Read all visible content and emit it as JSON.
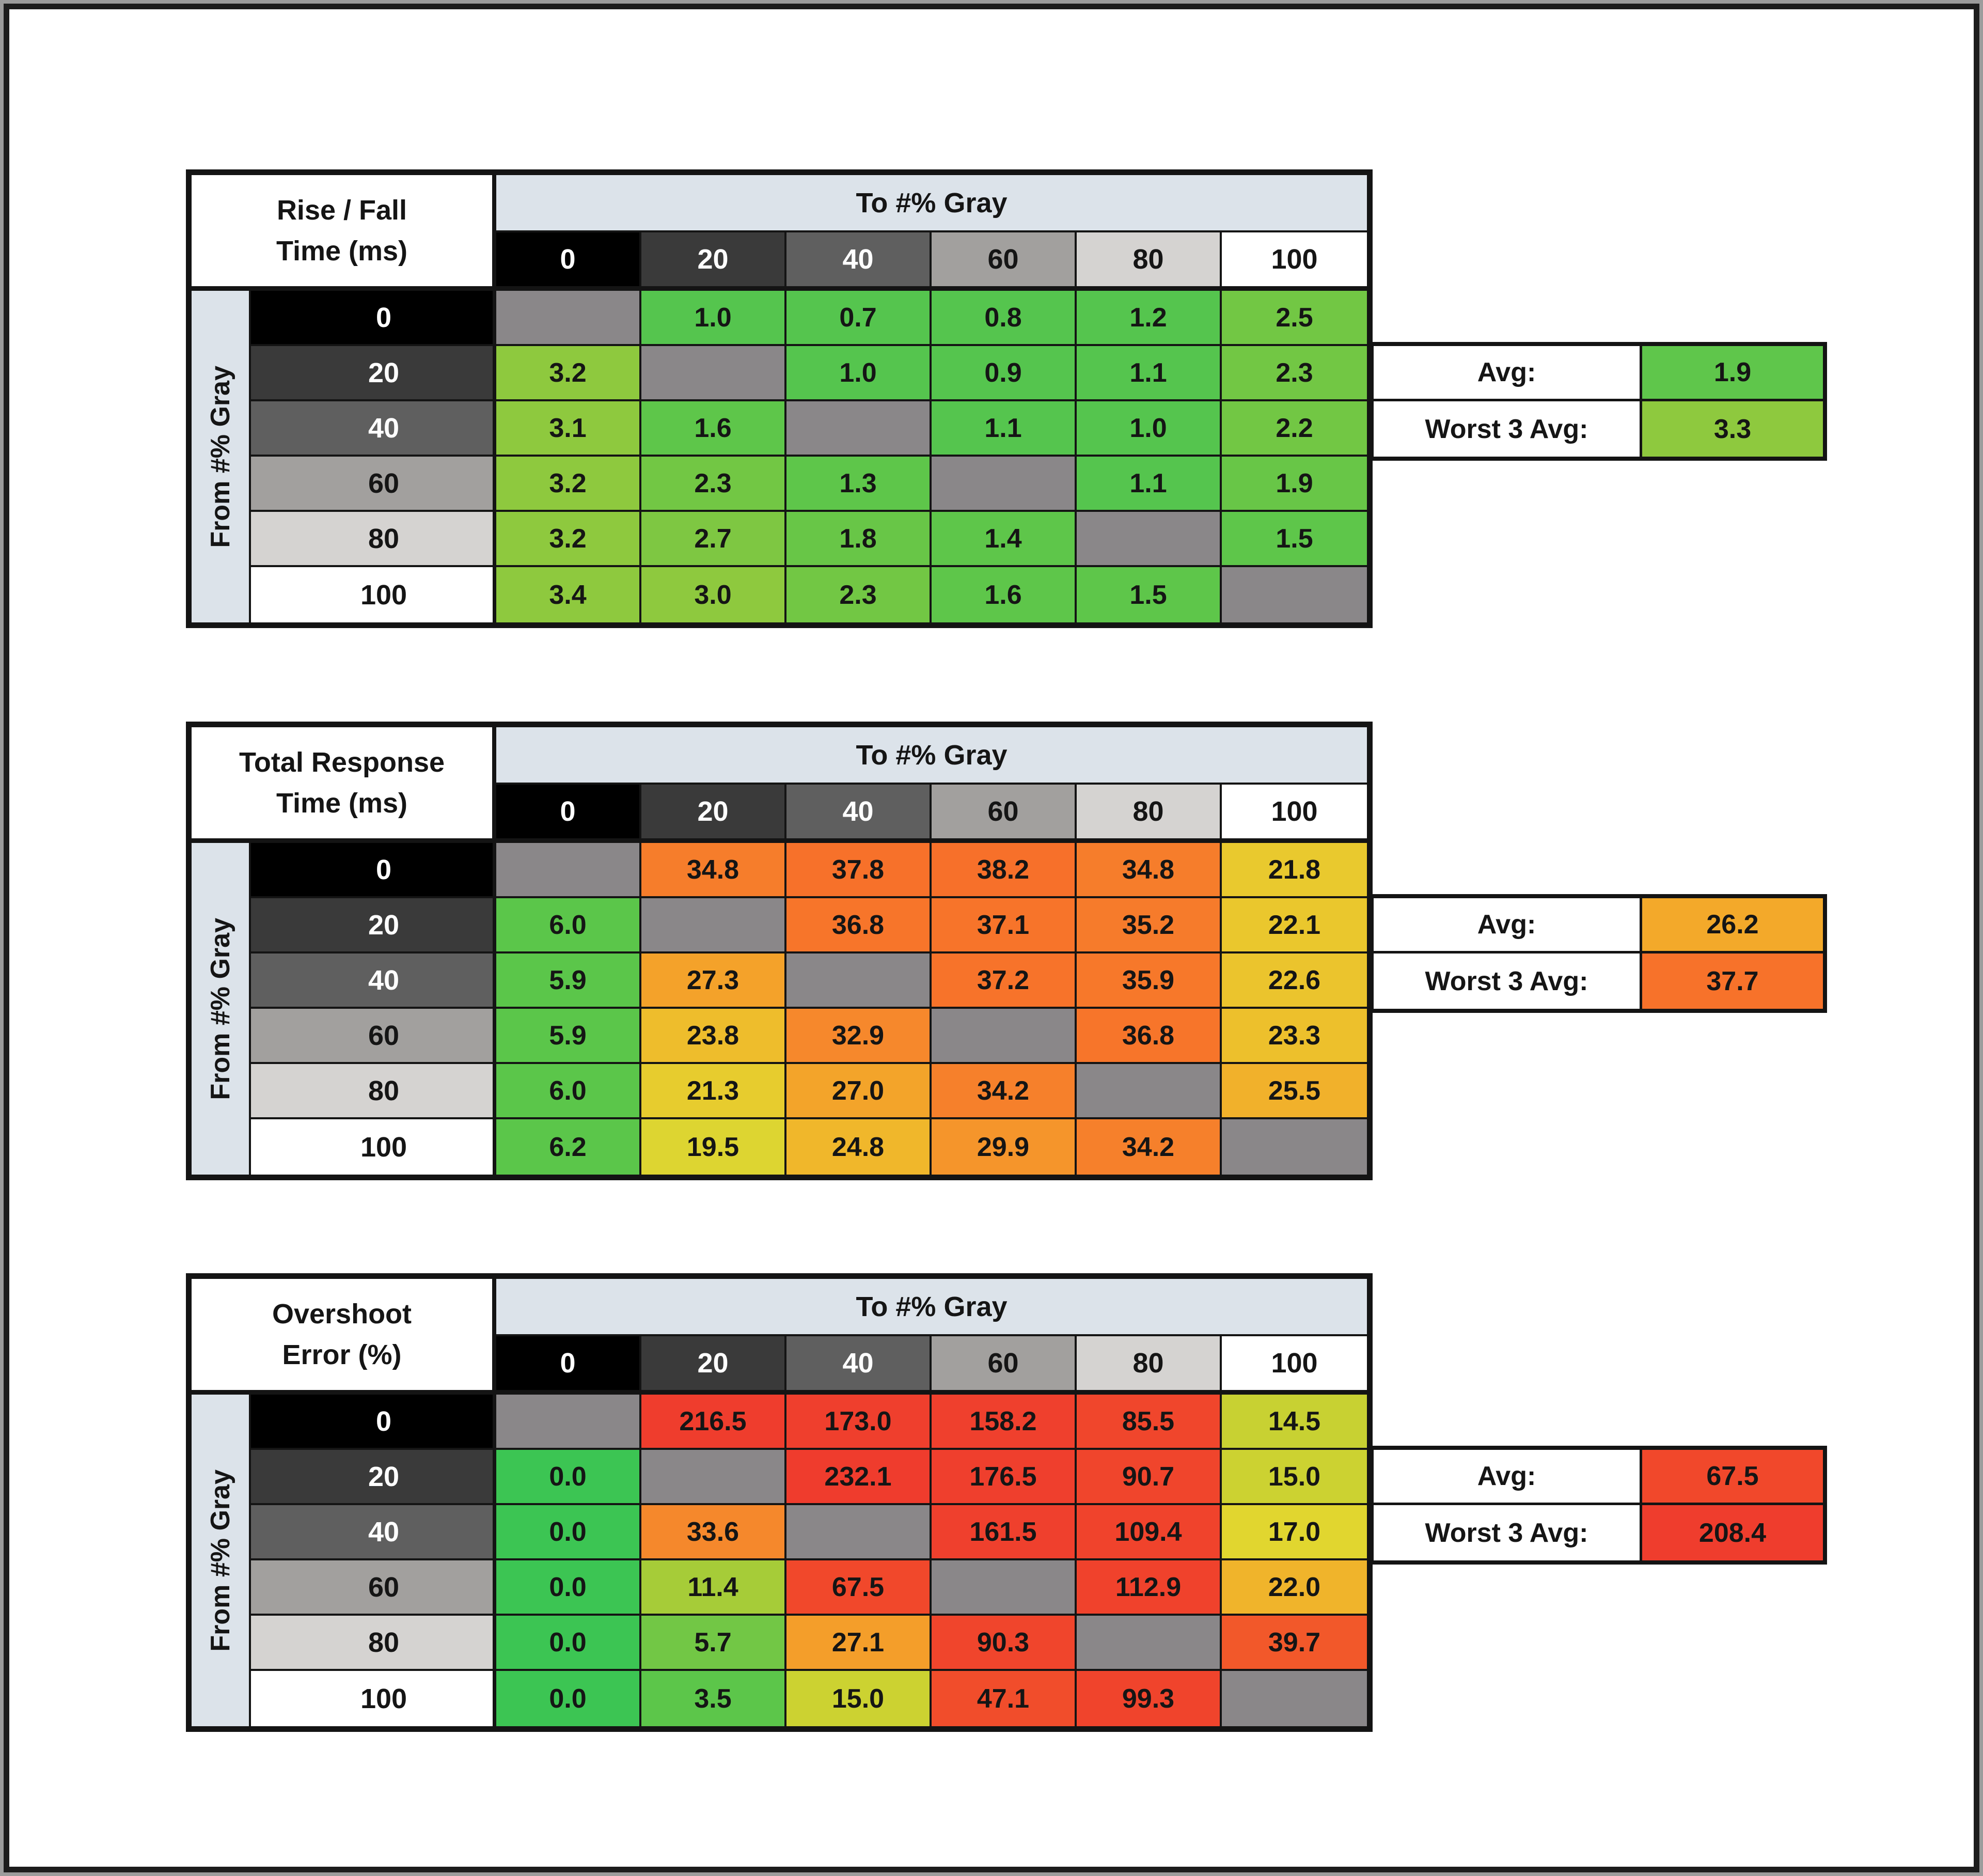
{
  "page": {
    "background": "#ffffff",
    "frame_border_color": "#1d1d1d",
    "outer_edge_color": "#9c9c9c"
  },
  "shared": {
    "to_label": "To #% Gray",
    "from_label": "From #% Gray",
    "col_headers": [
      "0",
      "20",
      "40",
      "60",
      "80",
      "100"
    ],
    "row_headers": [
      "0",
      "20",
      "40",
      "60",
      "80",
      "100"
    ],
    "avg_label": "Avg:",
    "worst_label": "Worst 3 Avg:",
    "header_band_color": "#dce3ea",
    "gray_scale_colors": [
      "#000000",
      "#3a3a3a",
      "#5f5f5f",
      "#a2a09e",
      "#d5d3d1",
      "#ffffff"
    ],
    "gray_text_colors": [
      "#ffffff",
      "#ffffff",
      "#ffffff",
      "#151515",
      "#151515",
      "#151515"
    ],
    "diagonal_color": "#8a8789",
    "grid_line_color": "#141414"
  },
  "chart_data": [
    {
      "type": "heatmap",
      "id": "rise-fall-time",
      "title": "Rise / Fall Time (ms)",
      "title_lines": [
        "Rise / Fall",
        "Time (ms)"
      ],
      "x_label": "To #% Gray",
      "y_label": "From #% Gray",
      "categories": [
        0,
        20,
        40,
        60,
        80,
        100
      ],
      "rows": [
        {
          "from": 0,
          "values": [
            null,
            "1.0",
            "0.7",
            "0.8",
            "1.2",
            "2.5"
          ]
        },
        {
          "from": 20,
          "values": [
            "3.2",
            null,
            "1.0",
            "0.9",
            "1.1",
            "2.3"
          ]
        },
        {
          "from": 40,
          "values": [
            "3.1",
            "1.6",
            null,
            "1.1",
            "1.0",
            "2.2"
          ]
        },
        {
          "from": 60,
          "values": [
            "3.2",
            "2.3",
            "1.3",
            null,
            "1.1",
            "1.9"
          ]
        },
        {
          "from": 80,
          "values": [
            "3.2",
            "2.7",
            "1.8",
            "1.4",
            null,
            "1.5"
          ]
        },
        {
          "from": 100,
          "values": [
            "3.4",
            "3.0",
            "2.3",
            "1.6",
            "1.5",
            null
          ]
        }
      ],
      "cell_colors": [
        [
          null,
          "#55c54e",
          "#55c54e",
          "#55c54e",
          "#55c54e",
          "#72c744"
        ],
        [
          "#8ec93e",
          null,
          "#55c54e",
          "#55c54e",
          "#55c54e",
          "#72c744"
        ],
        [
          "#8ec93e",
          "#5ec64a",
          null,
          "#55c54e",
          "#55c54e",
          "#72c744"
        ],
        [
          "#8ec93e",
          "#72c744",
          "#5ec64a",
          null,
          "#55c54e",
          "#68c647"
        ],
        [
          "#8ec93e",
          "#7ec742",
          "#68c647",
          "#5ec64a",
          null,
          "#5ec64a"
        ],
        [
          "#8ec93e",
          "#8ec93e",
          "#72c744",
          "#5ec64a",
          "#5ec64a",
          null
        ]
      ],
      "avg": {
        "value": "1.9",
        "color": "#5fc64b"
      },
      "worst3": {
        "value": "3.3",
        "color": "#8ec93e"
      }
    },
    {
      "type": "heatmap",
      "id": "total-response-time",
      "title": "Total Response Time (ms)",
      "title_lines": [
        "Total Response",
        "Time (ms)"
      ],
      "x_label": "To #% Gray",
      "y_label": "From #% Gray",
      "categories": [
        0,
        20,
        40,
        60,
        80,
        100
      ],
      "rows": [
        {
          "from": 0,
          "values": [
            null,
            "34.8",
            "37.8",
            "38.2",
            "34.8",
            "21.8"
          ]
        },
        {
          "from": 20,
          "values": [
            "6.0",
            null,
            "36.8",
            "37.1",
            "35.2",
            "22.1"
          ]
        },
        {
          "from": 40,
          "values": [
            "5.9",
            "27.3",
            null,
            "37.2",
            "35.9",
            "22.6"
          ]
        },
        {
          "from": 60,
          "values": [
            "5.9",
            "23.8",
            "32.9",
            null,
            "36.8",
            "23.3"
          ]
        },
        {
          "from": 80,
          "values": [
            "6.0",
            "21.3",
            "27.0",
            "34.2",
            null,
            "25.5"
          ]
        },
        {
          "from": 100,
          "values": [
            "6.2",
            "19.5",
            "24.8",
            "29.9",
            "34.2",
            null
          ]
        }
      ],
      "cell_colors": [
        [
          null,
          "#f67d2b",
          "#f7712a",
          "#f7702a",
          "#f67d2b",
          "#e9c92e"
        ],
        [
          "#5bc64a",
          null,
          "#f7752a",
          "#f7742a",
          "#f67b2b",
          "#eac72d"
        ],
        [
          "#5bc64a",
          "#f4a22a",
          null,
          "#f7732a",
          "#f7782a",
          "#ebc42d"
        ],
        [
          "#5bc64a",
          "#eebd2c",
          "#f6882c",
          null,
          "#f7752a",
          "#edc02c"
        ],
        [
          "#5bc64a",
          "#e7cc2e",
          "#f3a42a",
          "#f6802b",
          null,
          "#f1b12b"
        ],
        [
          "#5bc64a",
          "#ddd531",
          "#f0b72b",
          "#f5952b",
          "#f6802b",
          null
        ]
      ],
      "avg": {
        "value": "26.2",
        "color": "#f3a92a"
      },
      "worst3": {
        "value": "37.7",
        "color": "#f7722a"
      }
    },
    {
      "type": "heatmap",
      "id": "overshoot-error",
      "title": "Overshoot Error (%)",
      "title_lines": [
        "Overshoot",
        "Error (%)"
      ],
      "x_label": "To #% Gray",
      "y_label": "From #% Gray",
      "categories": [
        0,
        20,
        40,
        60,
        80,
        100
      ],
      "rows": [
        {
          "from": 0,
          "values": [
            null,
            "216.5",
            "173.0",
            "158.2",
            "85.5",
            "14.5"
          ]
        },
        {
          "from": 20,
          "values": [
            "0.0",
            null,
            "232.1",
            "176.5",
            "90.7",
            "15.0"
          ]
        },
        {
          "from": 40,
          "values": [
            "0.0",
            "33.6",
            null,
            "161.5",
            "109.4",
            "17.0"
          ]
        },
        {
          "from": 60,
          "values": [
            "0.0",
            "11.4",
            "67.5",
            null,
            "112.9",
            "22.0"
          ]
        },
        {
          "from": 80,
          "values": [
            "0.0",
            "5.7",
            "27.1",
            "90.3",
            null,
            "39.7"
          ]
        },
        {
          "from": 100,
          "values": [
            "0.0",
            "3.5",
            "15.0",
            "47.1",
            "99.3",
            null
          ]
        }
      ],
      "cell_colors": [
        [
          null,
          "#ef3d2d",
          "#ef3f2d",
          "#ef402d",
          "#f0462c",
          "#c8d132"
        ],
        [
          "#3cc553",
          null,
          "#ef3c2d",
          "#ef3f2d",
          "#f0452c",
          "#ccd231"
        ],
        [
          "#3cc553",
          "#f5882c",
          null,
          "#ef402d",
          "#f0432c",
          "#e1d62f"
        ],
        [
          "#3cc553",
          "#a6cc38",
          "#f1482b",
          null,
          "#f0422c",
          "#f0b42b"
        ],
        [
          "#3cc553",
          "#72c745",
          "#f49e2a",
          "#f0452c",
          null,
          "#f2582a"
        ],
        [
          "#3cc553",
          "#5cc64a",
          "#ccd231",
          "#f14d2b",
          "#f0442c",
          null
        ]
      ],
      "avg": {
        "value": "67.5",
        "color": "#f1482b"
      },
      "worst3": {
        "value": "208.4",
        "color": "#ef3d2d"
      }
    }
  ]
}
